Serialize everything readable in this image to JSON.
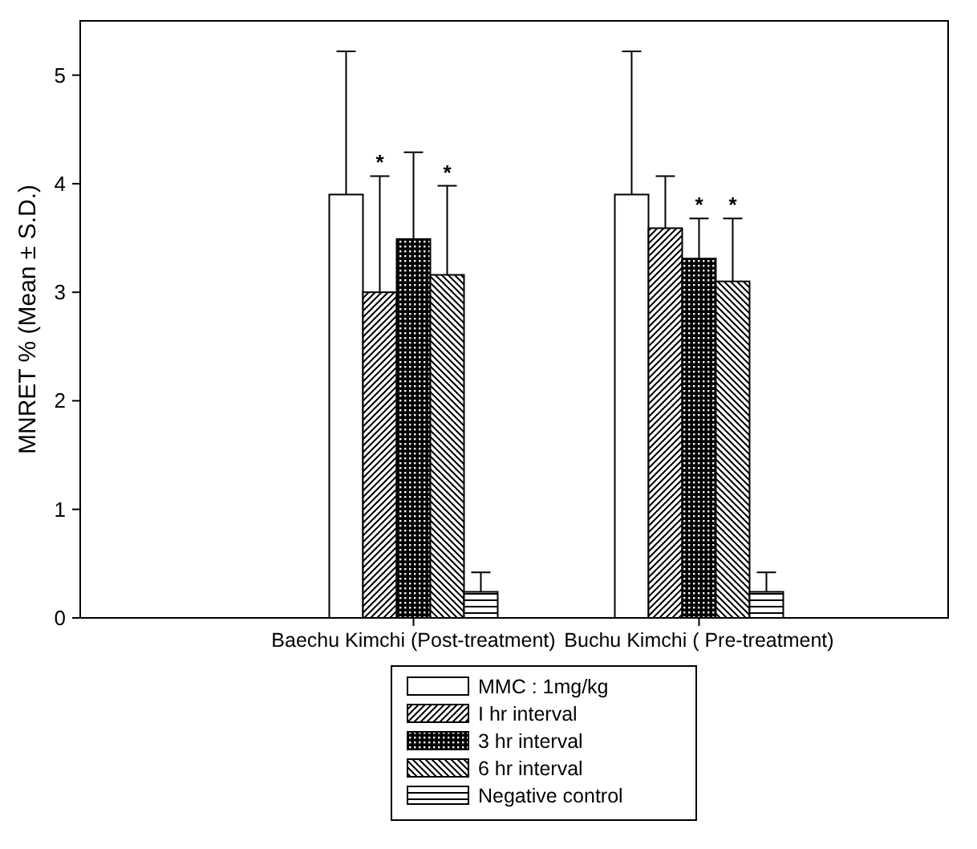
{
  "chart_data": {
    "type": "bar",
    "ylabel": "MNRET % (Mean ± S.D.)",
    "categories": [
      "Baechu Kimchi (Post-treatment)",
      "Buchu Kimchi ( Pre-treatment)"
    ],
    "series": [
      {
        "name": "MMC : 1mg/kg",
        "color": "#ffffff",
        "values": [
          3.9,
          3.9
        ],
        "errors": [
          [
            3.9,
            5.22
          ],
          [
            3.9,
            5.22
          ]
        ]
      },
      {
        "name": "I hr interval",
        "color": "#000000",
        "values": [
          3.0,
          3.59
        ],
        "errors": [
          [
            3.0,
            4.07
          ],
          [
            3.59,
            4.07
          ]
        ]
      },
      {
        "name": "3 hr interval",
        "color": "#000000",
        "values": [
          3.49,
          3.31
        ],
        "errors": [
          [
            3.49,
            4.29
          ],
          [
            3.31,
            3.68
          ]
        ]
      },
      {
        "name": "6 hr interval",
        "color": "#000000",
        "values": [
          3.16,
          3.1
        ],
        "errors": [
          [
            3.16,
            3.98
          ],
          [
            3.1,
            3.68
          ]
        ]
      },
      {
        "name": "Negative control",
        "color": "#000000",
        "values": [
          0.24,
          0.24
        ],
        "errors": [
          [
            0.24,
            0.42
          ],
          [
            0.24,
            0.42
          ]
        ]
      }
    ],
    "annotations": [
      {
        "text": "*",
        "x": "Baechu Kimchi (Post-treatment)",
        "y": 4.07
      },
      {
        "text": "*",
        "x": "Baechu Kimchi (Post-treatment)",
        "y": 3.98
      },
      {
        "text": "*",
        "x": "Buchu Kimchi ( Pre-treatment)",
        "y": 3.68
      },
      {
        "text": "*",
        "x": "Buchu Kimchi ( Pre-treatment)",
        "y": 3.68
      }
    ],
    "ylim": [
      0,
      5.5
    ],
    "yticks": [
      0,
      1,
      2,
      3,
      4,
      5
    ],
    "grid": false,
    "legend": "bottom"
  }
}
